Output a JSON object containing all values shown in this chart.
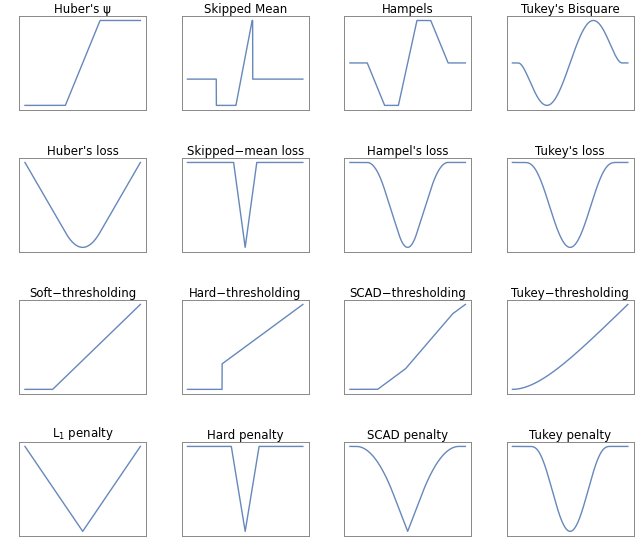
{
  "titles": [
    "Huber's ψ",
    "Skipped Mean",
    "Hampels",
    "Tukey's Bisquare",
    "Huber's loss",
    "Skipped−mean loss",
    "Hampel's loss",
    "Tukey's loss",
    "Soft−thresholding",
    "Hard−thresholding",
    "SCAD−thresholding",
    "Tukey−thresholding",
    "L₁ penalty",
    "Hard penalty",
    "SCAD penalty",
    "Tukey penalty"
  ],
  "line_color": "#6688bb",
  "bg_color": "#ffffff",
  "title_fontsize": 8.5,
  "figsize": [
    6.4,
    5.41
  ]
}
